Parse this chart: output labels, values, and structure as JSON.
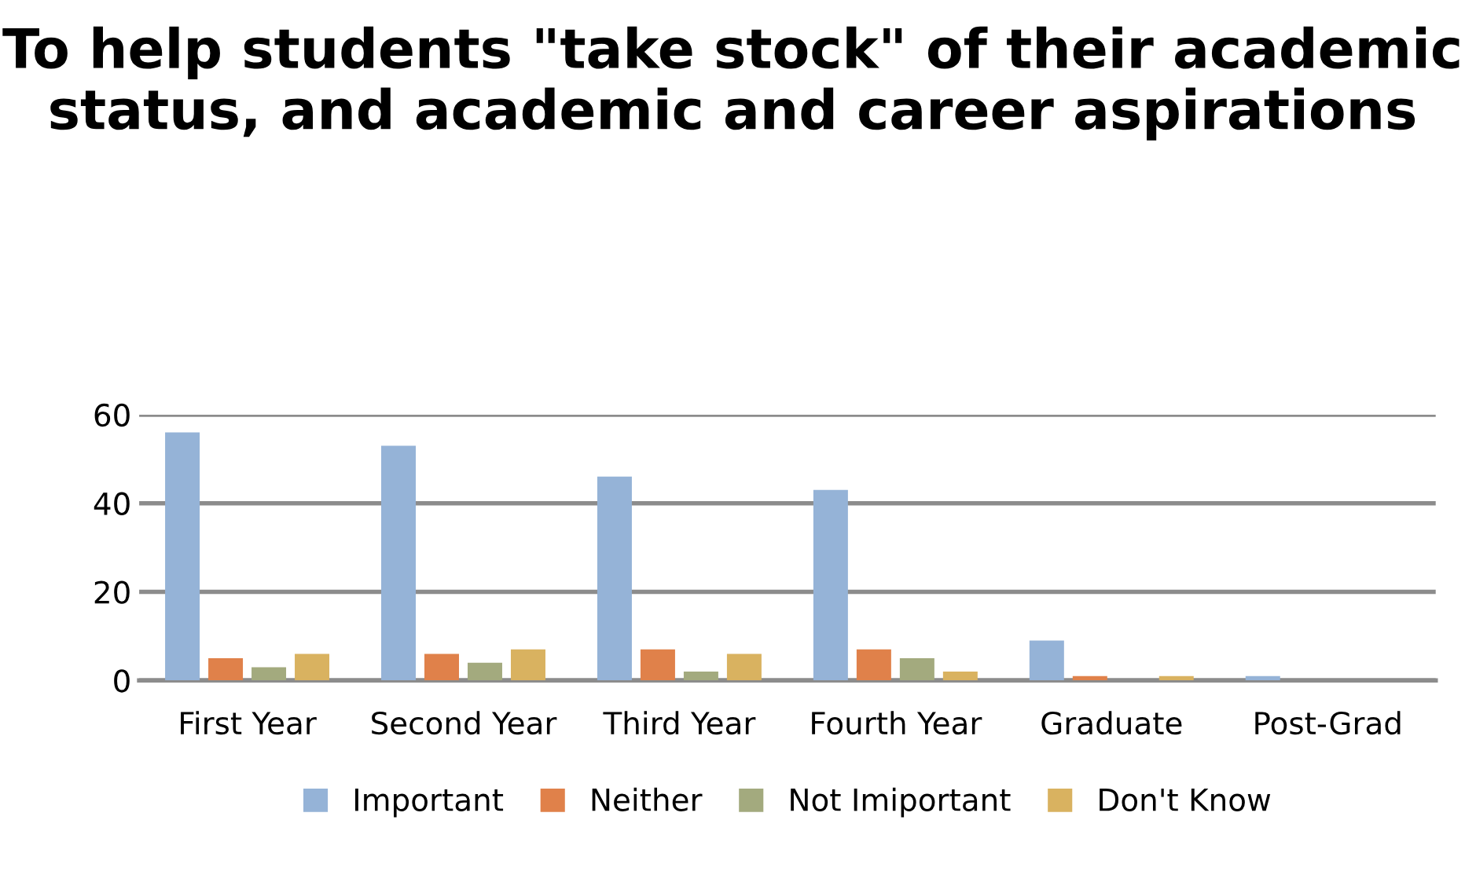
{
  "chart_data": {
    "type": "bar",
    "title": "To help students \"take stock\" of their academic status, and academic and career aspirations",
    "categories": [
      "First Year",
      "Second Year",
      "Third Year",
      "Fourth Year",
      "Graduate",
      "Post-Grad"
    ],
    "series": [
      {
        "name": "Important",
        "color": "#95b3d7",
        "values": [
          56,
          53,
          46,
          43,
          9,
          1
        ]
      },
      {
        "name": "Neither",
        "color": "#e0814a",
        "values": [
          5,
          6,
          7,
          7,
          1,
          0
        ]
      },
      {
        "name": "Not Imiportant",
        "color": "#a3aa7e",
        "values": [
          3,
          4,
          2,
          5,
          0,
          0
        ]
      },
      {
        "name": "Don't Know",
        "color": "#d9b260",
        "values": [
          6,
          7,
          6,
          2,
          1,
          0
        ]
      }
    ],
    "ylim": [
      0,
      60
    ],
    "yticks": [
      0,
      20,
      40,
      60
    ],
    "grid": "y",
    "legend": "bottom"
  }
}
